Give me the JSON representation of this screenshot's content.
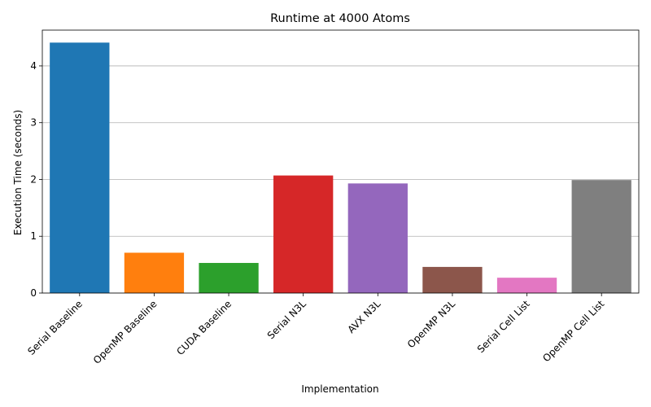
{
  "chart_data": {
    "type": "bar",
    "title": "Runtime at 4000 Atoms",
    "xlabel": "Implementation",
    "ylabel": "Execution Time (seconds)",
    "categories": [
      "Serial Baseline",
      "OpenMP Baseline",
      "CUDA Baseline",
      "Serial N3L",
      "AVX N3L",
      "OpenMP N3L",
      "Serial Cell List",
      "OpenMP Cell List"
    ],
    "values": [
      4.41,
      0.71,
      0.53,
      2.07,
      1.93,
      0.46,
      0.27,
      1.99
    ],
    "colors": [
      "#1f77b4",
      "#ff7f0e",
      "#2ca02c",
      "#d62728",
      "#9467bd",
      "#8c564b",
      "#e377c2",
      "#7f7f7f"
    ],
    "ylim": [
      0,
      4.63
    ],
    "yticks": [
      0,
      1,
      2,
      3,
      4
    ],
    "grid": "y-major",
    "legend": "none"
  }
}
